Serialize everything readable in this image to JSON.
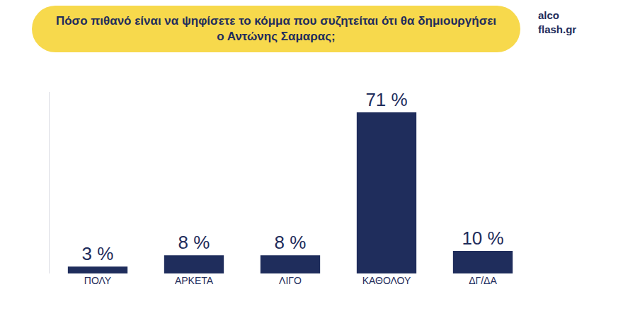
{
  "chart_data": {
    "type": "bar",
    "title": "Πόσο πιθανό είναι να ψηφίσετε το κόμμα που συζητείται ότι θα δημιουργήσει ο Αντώνης Σαμαρας;",
    "categories": [
      "ΠΟΛΥ",
      "ΑΡΚΕΤΑ",
      "ΛΙΓΟ",
      "ΚΑΘΟΛΟΥ",
      "ΔΓ/ΔΑ"
    ],
    "values": [
      3,
      8,
      8,
      71,
      10
    ],
    "value_labels": [
      "3 %",
      "8 %",
      "8 %",
      "71 %",
      "10 %"
    ],
    "color": "#1f2d5c",
    "ylim": [
      0,
      80
    ],
    "grid": false,
    "data_labels": true,
    "tick_labels": "x",
    "annotations": [
      "alco",
      "flash.gr"
    ]
  }
}
